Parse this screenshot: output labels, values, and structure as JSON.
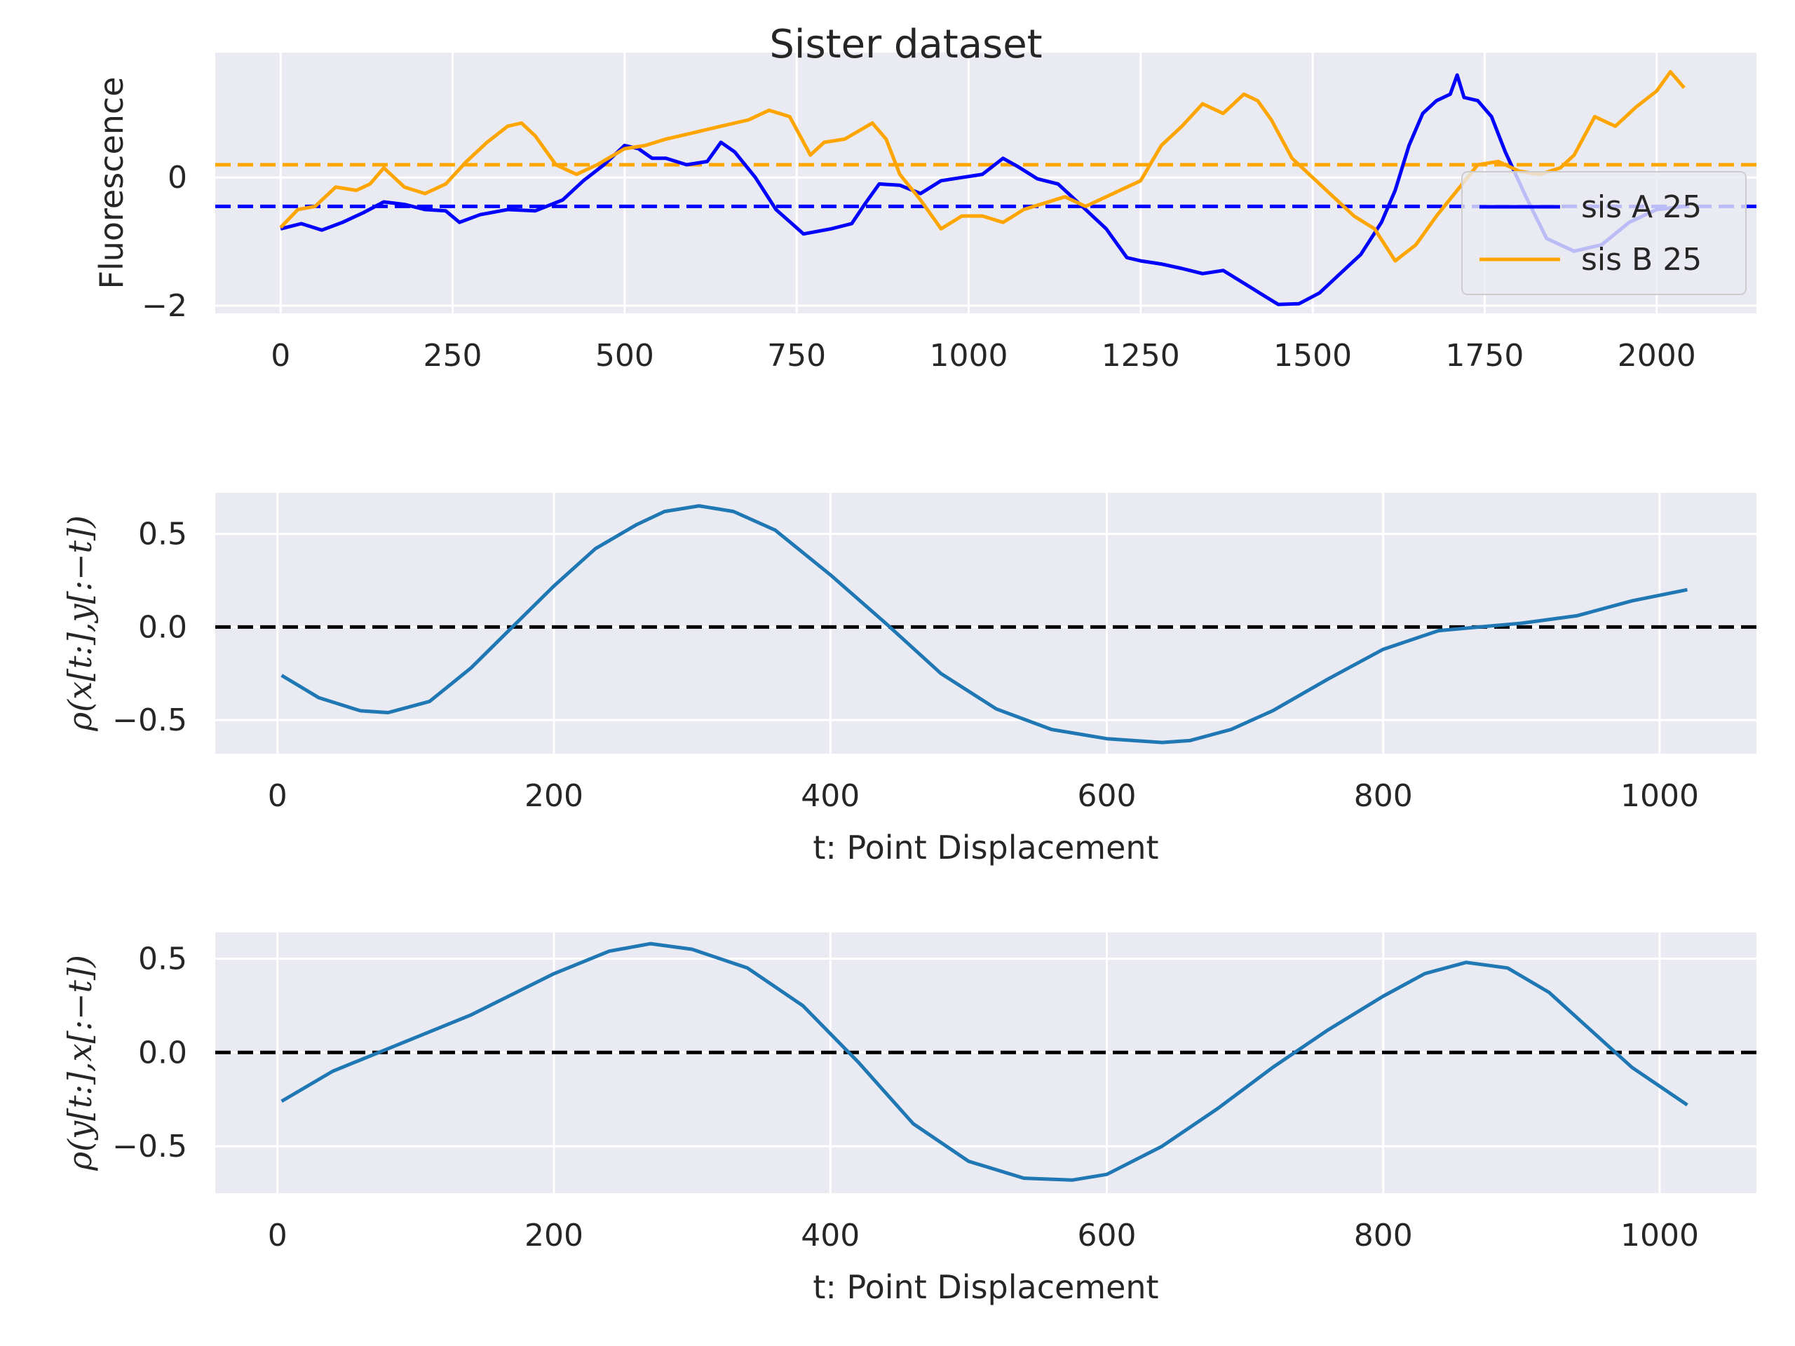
{
  "colors": {
    "axes_bg": "#eaeaf2",
    "grid": "#ffffff",
    "sis_a": "#0000ff",
    "sis_b": "#ffa500",
    "acf": "#1f77b4",
    "zero_line": "#000000"
  },
  "chart_data": [
    {
      "type": "line",
      "title": "Sister dataset",
      "xlabel": "",
      "ylabel": "Fluorescence",
      "xlim": [
        -95,
        2145
      ],
      "ylim": [
        -2.12,
        1.95
      ],
      "xticks": [
        0,
        250,
        500,
        750,
        1000,
        1250,
        1500,
        1750,
        2000
      ],
      "xtick_labels": [
        "0",
        "250",
        "500",
        "750",
        "1000",
        "1250",
        "1500",
        "1750",
        "2000"
      ],
      "yticks": [
        -2,
        0
      ],
      "ytick_labels": [
        "−2",
        "0"
      ],
      "grid": true,
      "legend_position": "right",
      "series": [
        {
          "name": "sis A 25",
          "color": "#0000ff",
          "x": [
            0,
            30,
            60,
            90,
            120,
            150,
            180,
            210,
            240,
            260,
            290,
            330,
            370,
            410,
            440,
            470,
            500,
            520,
            540,
            560,
            590,
            620,
            640,
            660,
            690,
            720,
            760,
            800,
            830,
            850,
            870,
            900,
            930,
            960,
            990,
            1020,
            1050,
            1070,
            1100,
            1130,
            1150,
            1170,
            1200,
            1230,
            1250,
            1280,
            1310,
            1340,
            1370,
            1400,
            1430,
            1450,
            1480,
            1510,
            1540,
            1570,
            1600,
            1620,
            1640,
            1660,
            1680,
            1700,
            1710,
            1720,
            1740,
            1760,
            1780,
            1810,
            1840,
            1880,
            1920,
            1960,
            2000,
            2040
          ],
          "y": [
            -0.8,
            -0.72,
            -0.82,
            -0.7,
            -0.55,
            -0.38,
            -0.42,
            -0.5,
            -0.52,
            -0.7,
            -0.58,
            -0.5,
            -0.52,
            -0.35,
            -0.05,
            0.2,
            0.5,
            0.45,
            0.3,
            0.3,
            0.2,
            0.25,
            0.55,
            0.4,
            0.0,
            -0.5,
            -0.88,
            -0.8,
            -0.72,
            -0.4,
            -0.1,
            -0.12,
            -0.25,
            -0.05,
            0.0,
            0.05,
            0.3,
            0.18,
            -0.02,
            -0.1,
            -0.3,
            -0.5,
            -0.8,
            -1.25,
            -1.3,
            -1.35,
            -1.42,
            -1.5,
            -1.45,
            -1.65,
            -1.85,
            -1.98,
            -1.97,
            -1.8,
            -1.5,
            -1.2,
            -0.7,
            -0.2,
            0.5,
            1.0,
            1.2,
            1.3,
            1.6,
            1.25,
            1.2,
            0.95,
            0.4,
            -0.3,
            -0.95,
            -1.15,
            -1.05,
            -0.7,
            -0.5,
            -0.45
          ]
        },
        {
          "name": "sis B 25",
          "color": "#ffa500",
          "x": [
            0,
            25,
            50,
            80,
            110,
            130,
            150,
            180,
            210,
            240,
            270,
            300,
            330,
            350,
            370,
            400,
            430,
            460,
            500,
            530,
            560,
            600,
            640,
            680,
            710,
            740,
            770,
            790,
            820,
            860,
            880,
            900,
            930,
            960,
            990,
            1020,
            1050,
            1080,
            1110,
            1140,
            1170,
            1200,
            1220,
            1250,
            1280,
            1310,
            1340,
            1370,
            1400,
            1420,
            1440,
            1470,
            1500,
            1530,
            1560,
            1590,
            1620,
            1650,
            1680,
            1710,
            1740,
            1770,
            1800,
            1830,
            1860,
            1880,
            1910,
            1940,
            1970,
            2000,
            2020,
            2040
          ],
          "y": [
            -0.78,
            -0.5,
            -0.45,
            -0.15,
            -0.2,
            -0.1,
            0.15,
            -0.15,
            -0.25,
            -0.1,
            0.25,
            0.55,
            0.8,
            0.85,
            0.65,
            0.2,
            0.05,
            0.2,
            0.45,
            0.5,
            0.6,
            0.7,
            0.8,
            0.9,
            1.05,
            0.95,
            0.35,
            0.55,
            0.6,
            0.85,
            0.6,
            0.05,
            -0.35,
            -0.8,
            -0.6,
            -0.6,
            -0.7,
            -0.5,
            -0.4,
            -0.3,
            -0.45,
            -0.3,
            -0.2,
            -0.05,
            0.5,
            0.8,
            1.15,
            1.0,
            1.3,
            1.2,
            0.9,
            0.3,
            0.0,
            -0.3,
            -0.6,
            -0.8,
            -1.3,
            -1.05,
            -0.6,
            -0.2,
            0.2,
            0.25,
            0.1,
            0.05,
            0.15,
            0.35,
            0.95,
            0.8,
            1.1,
            1.35,
            1.65,
            1.4
          ]
        }
      ],
      "hlines": [
        {
          "y": 0.2,
          "color": "#ffa500",
          "style": "dashed"
        },
        {
          "y": -0.45,
          "color": "#0000ff",
          "style": "dashed"
        }
      ]
    },
    {
      "type": "line",
      "xlabel": "t: Point Displacement",
      "ylabel": "ρ(x[t:],y[:−t])",
      "xlim": [
        -45,
        1070
      ],
      "ylim": [
        -0.68,
        0.72
      ],
      "xticks": [
        0,
        200,
        400,
        600,
        800,
        1000
      ],
      "xtick_labels": [
        "0",
        "200",
        "400",
        "600",
        "800",
        "1000"
      ],
      "yticks": [
        0.5,
        0.0,
        -0.5
      ],
      "ytick_labels": [
        "0.5",
        "0.0",
        "−0.5"
      ],
      "grid": true,
      "series": [
        {
          "color": "#1f77b4",
          "x": [
            3,
            30,
            60,
            80,
            110,
            140,
            170,
            200,
            230,
            260,
            280,
            305,
            330,
            360,
            400,
            440,
            480,
            520,
            560,
            600,
            640,
            660,
            690,
            720,
            760,
            800,
            840,
            870,
            900,
            940,
            980,
            1020
          ],
          "y": [
            -0.26,
            -0.38,
            -0.45,
            -0.46,
            -0.4,
            -0.22,
            0.0,
            0.22,
            0.42,
            0.55,
            0.62,
            0.65,
            0.62,
            0.52,
            0.28,
            0.02,
            -0.25,
            -0.44,
            -0.55,
            -0.6,
            -0.62,
            -0.61,
            -0.55,
            -0.45,
            -0.28,
            -0.12,
            -0.02,
            0.0,
            0.02,
            0.06,
            0.14,
            0.2
          ]
        }
      ],
      "hlines": [
        {
          "y": 0.0,
          "color": "#000000",
          "style": "dashed"
        }
      ]
    },
    {
      "type": "line",
      "xlabel": "t: Point Displacement",
      "ylabel": "ρ(y[t:],x[:−t])",
      "xlim": [
        -45,
        1070
      ],
      "ylim": [
        -0.75,
        0.64
      ],
      "xticks": [
        0,
        200,
        400,
        600,
        800,
        1000
      ],
      "xtick_labels": [
        "0",
        "200",
        "400",
        "600",
        "800",
        "1000"
      ],
      "yticks": [
        0.5,
        0.0,
        -0.5
      ],
      "ytick_labels": [
        "0.5",
        "0.0",
        "−0.5"
      ],
      "grid": true,
      "series": [
        {
          "color": "#1f77b4",
          "x": [
            3,
            40,
            80,
            140,
            200,
            240,
            270,
            300,
            340,
            380,
            420,
            460,
            500,
            540,
            575,
            600,
            640,
            680,
            720,
            760,
            800,
            830,
            860,
            890,
            920,
            950,
            980,
            1020
          ],
          "y": [
            -0.26,
            -0.1,
            0.02,
            0.2,
            0.42,
            0.54,
            0.58,
            0.55,
            0.45,
            0.25,
            -0.05,
            -0.38,
            -0.58,
            -0.67,
            -0.68,
            -0.65,
            -0.5,
            -0.3,
            -0.08,
            0.12,
            0.3,
            0.42,
            0.48,
            0.45,
            0.32,
            0.12,
            -0.08,
            -0.28
          ]
        }
      ],
      "hlines": [
        {
          "y": 0.0,
          "color": "#000000",
          "style": "dashed"
        }
      ]
    }
  ]
}
